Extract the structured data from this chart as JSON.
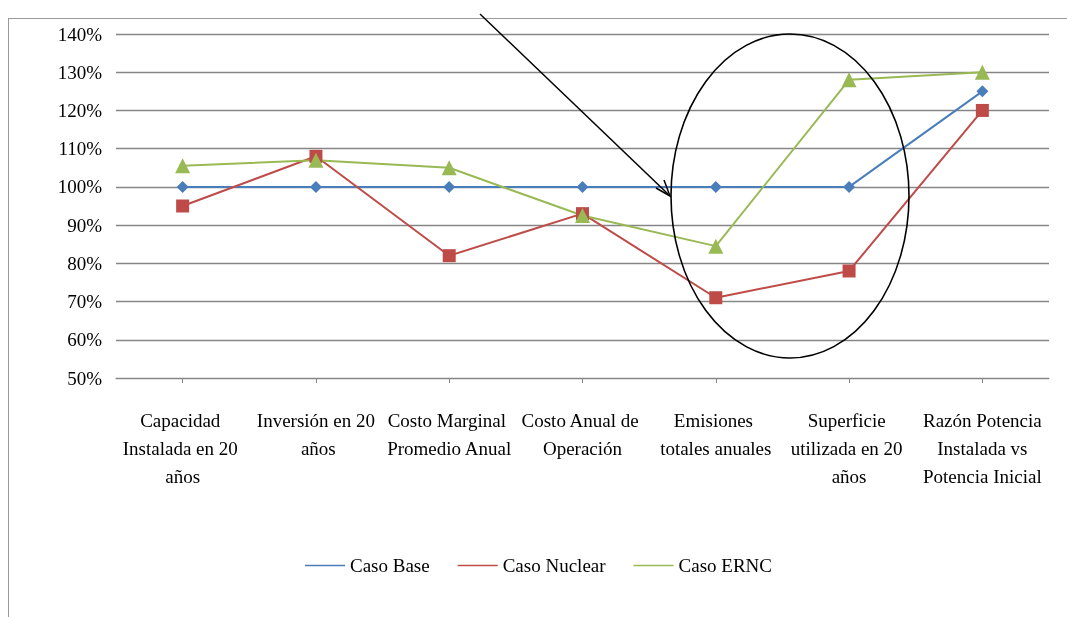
{
  "chart_data": {
    "type": "line",
    "categories": [
      "Capacidad Instalada en 20 años",
      "Inversión en 20 años",
      "Costo Marginal Promedio Anual",
      "Costo Anual de Operación",
      "Emisiones totales anuales",
      "Superficie utilizada en 20 años",
      "Razón Potencia Instalada vs Potencia Inicial"
    ],
    "series": [
      {
        "name": "Caso Base",
        "color": "#4a7ebb",
        "marker": "diamond",
        "values": [
          100,
          100,
          100,
          100,
          100,
          100,
          125
        ]
      },
      {
        "name": "Caso Nuclear",
        "color": "#be4b48",
        "marker": "square",
        "values": [
          95,
          108,
          82,
          93,
          71,
          78,
          120
        ]
      },
      {
        "name": "Caso ERNC",
        "color": "#98b954",
        "marker": "triangle",
        "values": [
          105.5,
          107,
          105,
          92.5,
          84.5,
          128,
          130
        ]
      }
    ],
    "ylim": [
      50,
      140
    ],
    "yticks": [
      {
        "value": 50,
        "label": "50%"
      },
      {
        "value": 60,
        "label": "60%"
      },
      {
        "value": 70,
        "label": "70%"
      },
      {
        "value": 80,
        "label": "80%"
      },
      {
        "value": 90,
        "label": "90%"
      },
      {
        "value": 100,
        "label": "100%"
      },
      {
        "value": 110,
        "label": "110%"
      },
      {
        "value": 120,
        "label": "120%"
      },
      {
        "value": 130,
        "label": "130%"
      },
      {
        "value": 140,
        "label": "140%"
      }
    ],
    "grid": "y",
    "legend": "bottom"
  }
}
